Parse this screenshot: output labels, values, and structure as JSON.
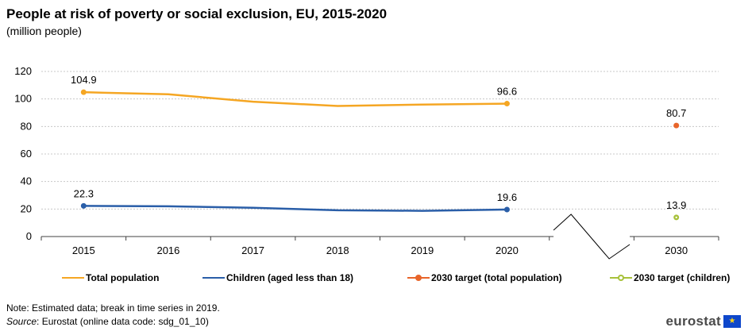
{
  "title": "People at risk of poverty or social exclusion, EU, 2015-2020",
  "subtitle": "(million people)",
  "note": "Note: Estimated data; break in time series in 2019.",
  "source": {
    "prefix": "Source",
    "text": ": Eurostat (online data code: sdg_01_10)"
  },
  "logo": {
    "text": "eurostat",
    "flag_icon": "eu-flag-icon"
  },
  "colors": {
    "total": "#f5a623",
    "children": "#2a5ea8",
    "target_total": "#e8652a",
    "target_children": "#a7c13a",
    "grid": "#c8c8c8",
    "axis": "#404040"
  },
  "chart_data": {
    "type": "line",
    "categories": [
      "2015",
      "2016",
      "2017",
      "2018",
      "2019",
      "2020",
      "",
      "2030"
    ],
    "ylim": [
      0,
      120
    ],
    "yticks": [
      0,
      20,
      40,
      60,
      80,
      100,
      120
    ],
    "grid": true,
    "axis_break_between": [
      "2020",
      "2030"
    ],
    "legend_position": "bottom",
    "series": [
      {
        "name": "Total population",
        "key": "total",
        "x": [
          "2015",
          "2016",
          "2017",
          "2018",
          "2019",
          "2020"
        ],
        "values": [
          104.9,
          103.4,
          98.0,
          94.9,
          95.9,
          96.6
        ],
        "labels": {
          "2015": "104.9",
          "2020": "96.6"
        }
      },
      {
        "name": "Children (aged less than 18)",
        "key": "children",
        "x": [
          "2015",
          "2016",
          "2017",
          "2018",
          "2019",
          "2020"
        ],
        "values": [
          22.3,
          22.0,
          20.9,
          19.1,
          18.7,
          19.6
        ],
        "labels": {
          "2015": "22.3",
          "2020": "19.6"
        }
      },
      {
        "name": "2030 target (total population)",
        "key": "target_total",
        "x": [
          "2030"
        ],
        "values": [
          80.7
        ],
        "labels": {
          "2030": "80.7"
        }
      },
      {
        "name": "2030 target (children)",
        "key": "target_children",
        "x": [
          "2030"
        ],
        "values": [
          13.9
        ],
        "labels": {
          "2030": "13.9"
        }
      }
    ]
  }
}
